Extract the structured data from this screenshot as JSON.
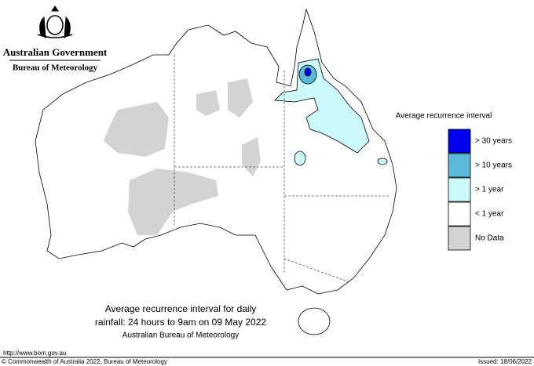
{
  "header": {
    "title": "Australian Government",
    "subtitle": "Bureau of Meteorology"
  },
  "map": {
    "caption": [
      "Average recurrence interval for daily",
      "rainfall: 24 hours to 9am on 09 May 2022",
      "Australian Bureau of Meteorology"
    ]
  },
  "legend": {
    "title": "Average recurrence interval",
    "items": [
      {
        "label": "> 30 years",
        "color": "#0000ee"
      },
      {
        "label": "> 10 years",
        "color": "#5cb8d8"
      },
      {
        "label": "> 1 year",
        "color": "#ccfafa"
      },
      {
        "label": "< 1 year",
        "color": "#ffffff"
      },
      {
        "label": "No Data",
        "color": "#d3d3d3"
      }
    ]
  },
  "footer": {
    "url": "http://www.bom.gov.au",
    "copyright": "© Commonwealth of Australia 2022, Bureau of Meteorology",
    "issued": "Issued: 18/06/2022"
  }
}
